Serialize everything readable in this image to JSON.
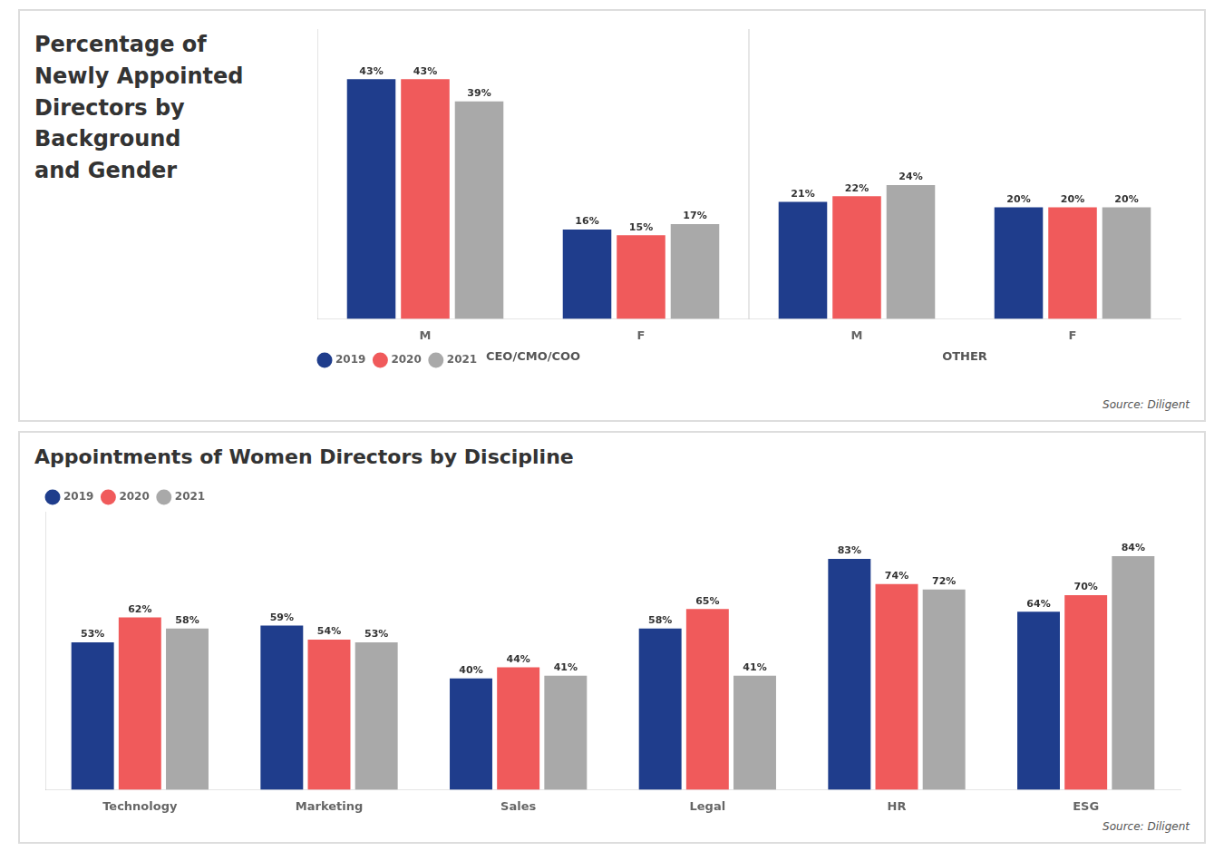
{
  "chart_data": [
    {
      "type": "bar",
      "title": [
        "Percentage of",
        "Newly Appointed",
        "Directors by",
        "Background",
        "and Gender"
      ],
      "categories": [
        "M",
        "F",
        "M",
        "F"
      ],
      "groups": [
        "CEO/CMO/COO",
        "OTHER"
      ],
      "series": [
        {
          "name": "2019",
          "color": "#1F3D8C",
          "values": [
            43,
            16,
            21,
            20
          ],
          "value_labels": [
            "43%",
            "16%",
            "21%",
            "20%"
          ]
        },
        {
          "name": "2020",
          "color": "#F05A5B",
          "values": [
            43,
            15,
            22,
            20
          ],
          "value_labels": [
            "43%",
            "15%",
            "22%",
            "20%"
          ]
        },
        {
          "name": "2021",
          "color": "#A9A9A9",
          "values": [
            39,
            17,
            24,
            20
          ],
          "value_labels": [
            "39%",
            "17%",
            "24%",
            "20%"
          ]
        }
      ],
      "ylim": [
        0,
        52
      ],
      "grid": false,
      "legend": "bottom",
      "data_labels": true,
      "tick_labels": "x",
      "annotations": [
        "Source: Diligent"
      ]
    },
    {
      "type": "bar",
      "title": "Appointments of Women Directors by Discipline",
      "categories": [
        "Technology",
        "Marketing",
        "Sales",
        "Legal",
        "HR",
        "ESG"
      ],
      "series": [
        {
          "name": "2019",
          "color": "#1F3D8C",
          "values": [
            53,
            59,
            40,
            58,
            83,
            64
          ],
          "value_labels": [
            "53%",
            "59%",
            "40%",
            "58%",
            "83%",
            "64%"
          ]
        },
        {
          "name": "2020",
          "color": "#F05A5B",
          "values": [
            62,
            54,
            44,
            65,
            74,
            70
          ],
          "value_labels": [
            "62%",
            "54%",
            "44%",
            "65%",
            "74%",
            "70%"
          ]
        },
        {
          "name": "2021",
          "color": "#A9A9A9",
          "values": [
            58,
            53,
            41,
            41,
            72,
            84
          ],
          "value_labels": [
            "58%",
            "53%",
            "41%",
            "41%",
            "72%",
            "84%"
          ]
        }
      ],
      "ylim": [
        0,
        100
      ],
      "grid": false,
      "legend": "top",
      "data_labels": true,
      "tick_labels": "x",
      "annotations": [
        "Source: Diligent"
      ]
    }
  ]
}
